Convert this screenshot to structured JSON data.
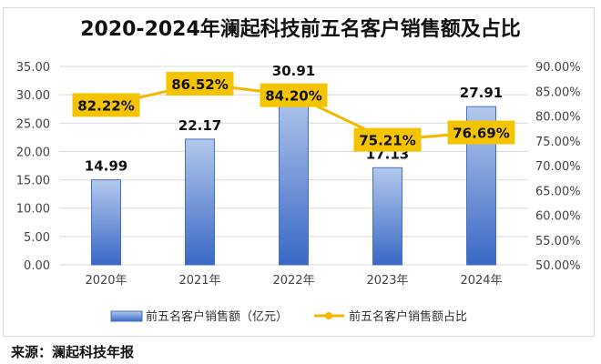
{
  "chart_data": {
    "type": "bar+line",
    "title": "2020-2024年澜起科技前五名客户销售额及占比",
    "categories": [
      "2020年",
      "2021年",
      "2022年",
      "2023年",
      "2024年"
    ],
    "series": [
      {
        "name": "前五名客户销售额（亿元）",
        "type": "bar",
        "axis": "left",
        "values": [
          14.99,
          22.17,
          30.91,
          17.13,
          27.91
        ],
        "labels": [
          "14.99",
          "22.17",
          "30.91",
          "17.13",
          "27.91"
        ]
      },
      {
        "name": "前五名客户销售额占比",
        "type": "line",
        "axis": "right",
        "values": [
          82.22,
          86.52,
          84.2,
          75.21,
          76.69
        ],
        "labels": [
          "82.22%",
          "86.52%",
          "84.20%",
          "75.21%",
          "76.69%"
        ]
      }
    ],
    "y_left": {
      "range": [
        0,
        35
      ],
      "ticks": [
        "0.00",
        "5.00",
        "10.00",
        "15.00",
        "20.00",
        "25.00",
        "30.00",
        "35.00"
      ]
    },
    "y_right": {
      "range": [
        50,
        90
      ],
      "ticks": [
        "50.00%",
        "55.00%",
        "60.00%",
        "65.00%",
        "70.00%",
        "75.00%",
        "80.00%",
        "85.00%",
        "90.00%"
      ]
    },
    "grid": true,
    "legend_position": "bottom",
    "colors": {
      "bar_top": "#b4c8ec",
      "bar_bottom": "#3a68c6",
      "bar_border": "#4472c4",
      "line": "#f5b800",
      "label_box": "#f5c400"
    }
  },
  "source": "来源：澜起科技年报"
}
